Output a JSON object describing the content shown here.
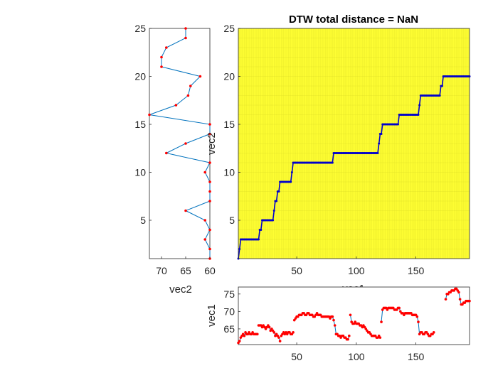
{
  "chart_data": [
    {
      "type": "line",
      "panel": "left",
      "xlabel": "vec2",
      "ylabel": "",
      "xlim": [
        72.5,
        60
      ],
      "ylim": [
        1,
        25
      ],
      "x_reversed": true,
      "xticks": [
        70,
        65,
        60
      ],
      "yticks": [
        5,
        10,
        15,
        20,
        25
      ],
      "line_color": "#0072BD",
      "marker_color": "#FF0000",
      "series": [
        {
          "x": [
            60,
            60,
            61,
            60,
            61,
            65,
            60,
            60,
            60,
            61,
            60,
            69,
            65,
            60,
            60,
            72.5,
            67,
            64.5,
            64,
            62,
            70,
            70,
            69,
            65,
            65
          ],
          "y": [
            1,
            2,
            3,
            4,
            5,
            6,
            7,
            8,
            9,
            10,
            11,
            12,
            13,
            14,
            15,
            16,
            17,
            18,
            19,
            20,
            21,
            22,
            23,
            24,
            25
          ]
        }
      ]
    },
    {
      "type": "heatmap",
      "panel": "main",
      "title": "DTW total distance = NaN",
      "xlabel": "vec1",
      "ylabel": "vec2",
      "xlim": [
        1,
        195
      ],
      "ylim": [
        1,
        25
      ],
      "xticks": [
        50,
        100,
        150
      ],
      "yticks": [
        5,
        10,
        15,
        20,
        25
      ],
      "background_color": "#FFFF33",
      "path_color": "#0000CC",
      "series": [
        {
          "name": "",
          "x": [
            1,
            2,
            3,
            18,
            19,
            20,
            21,
            30,
            31,
            32,
            33,
            34,
            35,
            36,
            37,
            38,
            45,
            46,
            47,
            48,
            49,
            80,
            81,
            82,
            118,
            119,
            120,
            121,
            122,
            123,
            135,
            136,
            152,
            153,
            154,
            170,
            171,
            172,
            173,
            195
          ],
          "y": [
            1,
            2,
            3,
            3,
            4,
            4,
            5,
            5,
            6,
            7,
            7,
            8,
            8,
            9,
            9,
            9,
            9,
            10,
            11,
            11,
            11,
            11,
            12,
            12,
            12,
            13,
            14,
            14,
            15,
            15,
            15,
            16,
            16,
            17,
            18,
            18,
            19,
            19,
            20,
            20
          ]
        }
      ]
    },
    {
      "type": "line",
      "panel": "bottom",
      "xlabel": "",
      "ylabel": "vec1",
      "xlim": [
        1,
        195
      ],
      "ylim": [
        60.5,
        77
      ],
      "xticks": [
        50,
        100,
        150
      ],
      "yticks": [
        65,
        70,
        75
      ],
      "line_color": "#0072BD",
      "marker_color": "#FF0000",
      "segments": [
        {
          "x": [
            1,
            2,
            3,
            4,
            5,
            6,
            7,
            8,
            9,
            10,
            11,
            12,
            13,
            14,
            15,
            16,
            17
          ],
          "y": [
            61,
            61.5,
            62.5,
            63,
            63.5,
            63,
            64,
            63.5,
            63.5,
            64,
            63.5,
            63.5,
            64,
            63.5,
            63.5,
            63.5,
            63.5
          ]
        },
        {
          "x": [
            18,
            19,
            20,
            21,
            22,
            23,
            24,
            25,
            26,
            27,
            28,
            29,
            30,
            31,
            32,
            33,
            34,
            35,
            36
          ],
          "y": [
            66,
            66,
            66,
            65.5,
            66,
            65.5,
            65,
            65.5,
            66,
            65.5,
            64.5,
            65,
            64.5,
            64,
            63,
            63.5,
            63,
            62.5,
            61.5
          ]
        },
        {
          "x": [
            37,
            38,
            39,
            40,
            41,
            42,
            43,
            44,
            45,
            46,
            47
          ],
          "y": [
            63,
            63.5,
            64,
            63.5,
            64,
            63.5,
            64,
            64,
            63.5,
            63.5,
            64
          ]
        },
        {
          "x": [
            48,
            49,
            50,
            51,
            52,
            53,
            54,
            55,
            56,
            57,
            58,
            59,
            60,
            61,
            62,
            63,
            64,
            65,
            66,
            67,
            68,
            69,
            70,
            71,
            72,
            73,
            74,
            75,
            76,
            77,
            78,
            79,
            80,
            81,
            82,
            83
          ],
          "y": [
            67.5,
            68,
            68.5,
            68.5,
            69,
            69,
            69,
            69.5,
            69.5,
            69,
            69,
            69.5,
            69.5,
            69,
            69,
            69,
            68.5,
            68.5,
            69,
            69.5,
            69,
            69,
            69,
            68.5,
            68.5,
            68.5,
            68.5,
            68.5,
            68.5,
            68.5,
            68,
            68.5,
            68.5,
            67.5,
            66,
            63.5
          ]
        },
        {
          "x": [
            84,
            85,
            86,
            87,
            88,
            89,
            90,
            91,
            92,
            93,
            94
          ],
          "y": [
            63.5,
            63,
            63,
            62.5,
            63,
            63,
            62.5,
            62.5,
            62,
            62,
            63
          ]
        },
        {
          "x": [
            95,
            96,
            97,
            98,
            99,
            100,
            101,
            102,
            103,
            104,
            105,
            106,
            107,
            108,
            109,
            110,
            111,
            112,
            113,
            114,
            115,
            116,
            117,
            118,
            119,
            120
          ],
          "y": [
            69,
            67,
            66.5,
            66.5,
            67,
            66.5,
            66.5,
            66.5,
            66,
            66,
            65.5,
            66,
            65.5,
            65,
            64.5,
            64,
            64,
            63.5,
            63,
            63,
            63,
            63,
            62.5,
            62.5,
            63,
            62.5
          ]
        },
        {
          "x": [
            121,
            122,
            123,
            124,
            125,
            126,
            127,
            128,
            129,
            130,
            131,
            132,
            133,
            134,
            135,
            136,
            137,
            138,
            139,
            140,
            141,
            142,
            143,
            144,
            145,
            146,
            147,
            148,
            149,
            150,
            151,
            152,
            153
          ],
          "y": [
            67,
            70.5,
            71,
            71,
            71,
            70.5,
            71,
            71,
            71,
            71,
            71,
            70.5,
            70.5,
            70.5,
            71,
            71,
            70,
            69.5,
            69.5,
            69,
            69.5,
            69.5,
            69.5,
            69.5,
            69.5,
            69.5,
            69,
            69,
            69,
            69,
            68.5,
            67,
            63.5
          ]
        },
        {
          "x": [
            154,
            155,
            156,
            157,
            158,
            159,
            160,
            161,
            162,
            163,
            164,
            165
          ],
          "y": [
            64,
            64,
            63.5,
            63.5,
            64,
            64,
            63.5,
            63,
            63,
            63.5,
            63.5,
            64
          ]
        },
        {
          "x": [
            175,
            176,
            177,
            178,
            179,
            180,
            181,
            182,
            183,
            184,
            185,
            186,
            187,
            188,
            189,
            190,
            191,
            192,
            193,
            194,
            195
          ],
          "y": [
            73.5,
            75,
            75,
            75.5,
            75.5,
            76,
            76,
            76,
            76.5,
            76.5,
            76,
            75.5,
            73.5,
            72,
            72,
            72.5,
            72.5,
            73,
            73,
            73,
            73
          ]
        }
      ]
    }
  ]
}
